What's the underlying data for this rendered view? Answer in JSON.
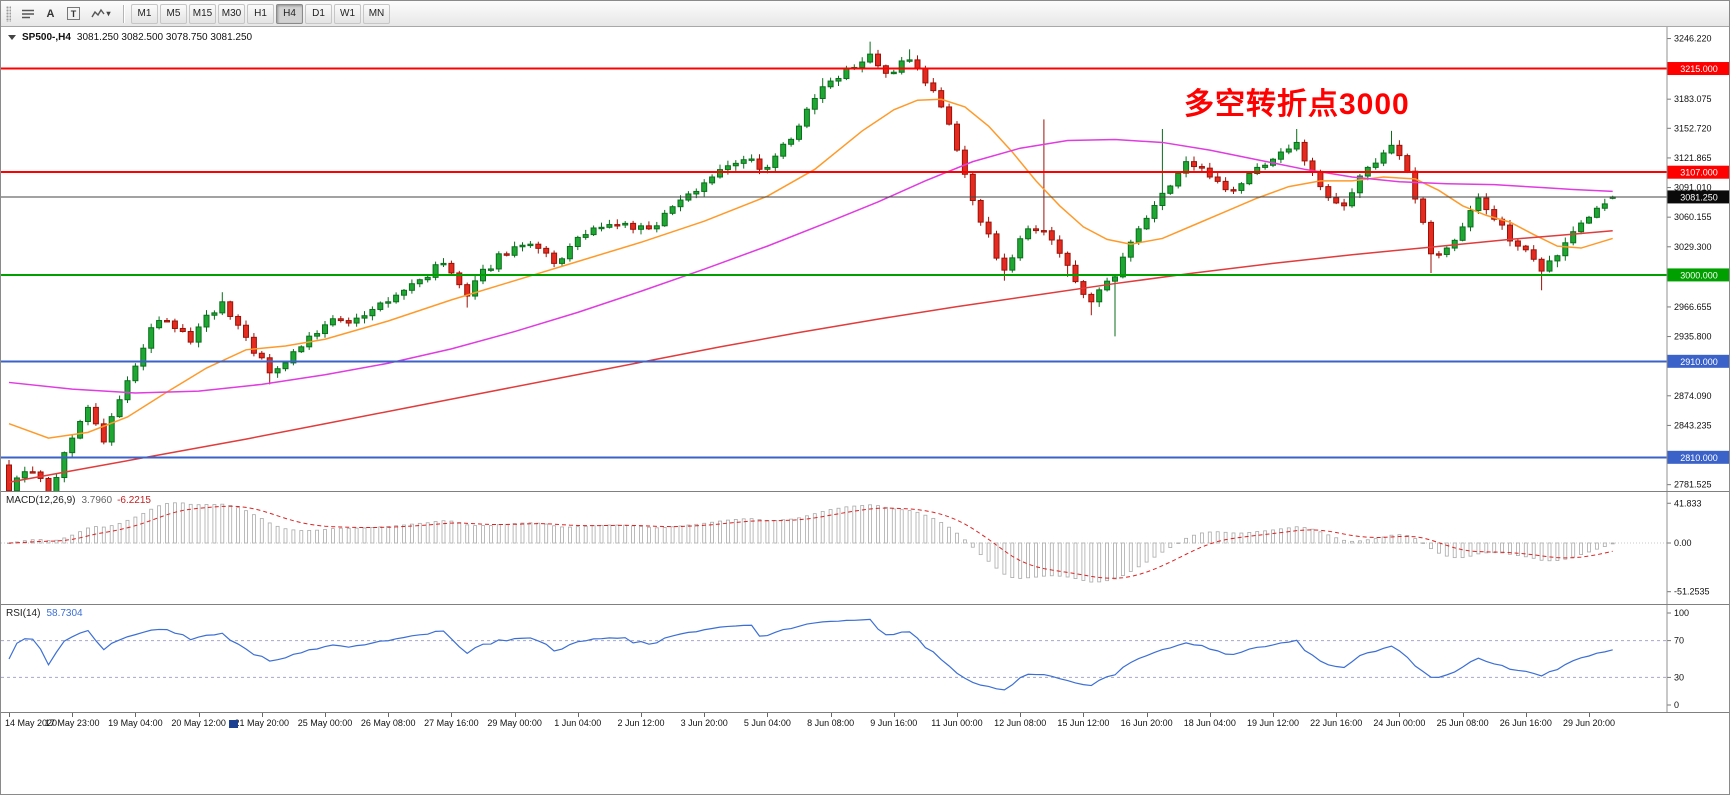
{
  "toolbar": {
    "tools": [
      "A",
      "T"
    ],
    "timeframes": [
      "M1",
      "M5",
      "M15",
      "M30",
      "H1",
      "H4",
      "D1",
      "W1",
      "MN"
    ],
    "active_timeframe": "H4"
  },
  "header": {
    "symbol": "SP500-,H4",
    "ohlc": "3081.250 3082.500 3078.750 3081.250"
  },
  "annotation": {
    "text": "多空转折点3000",
    "color": "#ff0000"
  },
  "colors": {
    "up": "#1fa733",
    "up_border": "#0a6e1c",
    "down": "#e52b20",
    "down_border": "#9c1208",
    "ma_fast": "#ff9a2a",
    "ma_medium": "#e03ce0",
    "ma_slow": "#e23b3b",
    "level_red": "#ff0000",
    "level_green": "#00a000",
    "level_blue": "#3a62c8",
    "price_line": "#444444",
    "price_badge_bg": "#0a0a0a",
    "macd_hist": "#aaaaaa",
    "macd_signal": "#dd2222",
    "rsi_line": "#3c6fd6"
  },
  "chart_data": {
    "type": "candlestick",
    "symbol": "SP500-",
    "timeframe": "H4",
    "ylim": [
      2777,
      3252
    ],
    "bars": 204,
    "bar_spacing": 7.9,
    "first_open": 2802,
    "last_bar": {
      "o": 3081.25,
      "h": 3082.5,
      "l": 3078.75,
      "c": 3081.25
    },
    "price_ticks": [
      3246.22,
      3183.075,
      3152.72,
      3121.865,
      3091.01,
      3060.155,
      3029.3,
      2966.655,
      2935.8,
      2874.09,
      2843.235,
      2781.525
    ],
    "levels": [
      {
        "price": 3215,
        "label": "3215.000",
        "color": "#ff0000"
      },
      {
        "price": 3107,
        "label": "3107.000",
        "color": "#ff0000"
      },
      {
        "price": 3000,
        "label": "3000.000",
        "color": "#00a000"
      },
      {
        "price": 2910,
        "label": "2910.000",
        "color": "#3a62c8"
      },
      {
        "price": 2810,
        "label": "2810.000",
        "color": "#3a62c8"
      }
    ],
    "current_price": {
      "value": 3081.25,
      "label": "3081.250"
    },
    "x_labels": [
      "14 May 2020",
      "17 May 23:00",
      "19 May 04:00",
      "20 May 12:00",
      "21 May 20:00",
      "25 May 00:00",
      "26 May 08:00",
      "27 May 16:00",
      "29 May 00:00",
      "1 Jun 04:00",
      "2 Jun 12:00",
      "3 Jun 20:00",
      "5 Jun 04:00",
      "8 Jun 08:00",
      "9 Jun 16:00",
      "11 Jun 00:00",
      "12 Jun 08:00",
      "15 Jun 12:00",
      "16 Jun 20:00",
      "18 Jun 04:00",
      "19 Jun 12:00",
      "22 Jun 16:00",
      "24 Jun 00:00",
      "25 Jun 08:00",
      "26 Jun 16:00",
      "29 Jun 20:00"
    ],
    "bars_per_label": 8,
    "close_anchors": [
      [
        0,
        2775
      ],
      [
        2,
        2795
      ],
      [
        4,
        2788
      ],
      [
        5,
        2772
      ],
      [
        8,
        2830
      ],
      [
        10,
        2862
      ],
      [
        12,
        2826
      ],
      [
        14,
        2870
      ],
      [
        16,
        2905
      ],
      [
        18,
        2945
      ],
      [
        20,
        2952
      ],
      [
        23,
        2930
      ],
      [
        25,
        2958
      ],
      [
        27,
        2972
      ],
      [
        30,
        2935
      ],
      [
        33,
        2898
      ],
      [
        36,
        2920
      ],
      [
        40,
        2948
      ],
      [
        44,
        2955
      ],
      [
        48,
        2972
      ],
      [
        52,
        2995
      ],
      [
        55,
        3012
      ],
      [
        58,
        2978
      ],
      [
        62,
        3022
      ],
      [
        66,
        3032
      ],
      [
        69,
        3012
      ],
      [
        73,
        3042
      ],
      [
        77,
        3052
      ],
      [
        81,
        3048
      ],
      [
        85,
        3078
      ],
      [
        89,
        3102
      ],
      [
        93,
        3120
      ],
      [
        96,
        3112
      ],
      [
        100,
        3155
      ],
      [
        103,
        3196
      ],
      [
        106,
        3215
      ],
      [
        109,
        3230
      ],
      [
        111,
        3210
      ],
      [
        114,
        3224
      ],
      [
        116,
        3200
      ],
      [
        118,
        3175
      ],
      [
        120,
        3130
      ],
      [
        123,
        3055
      ],
      [
        126,
        3005
      ],
      [
        129,
        3048
      ],
      [
        131,
        3046
      ],
      [
        134,
        3010
      ],
      [
        137,
        2972
      ],
      [
        140,
        2998
      ],
      [
        143,
        3048
      ],
      [
        146,
        3085
      ],
      [
        149,
        3118
      ],
      [
        152,
        3102
      ],
      [
        155,
        3088
      ],
      [
        158,
        3112
      ],
      [
        161,
        3128
      ],
      [
        163,
        3138
      ],
      [
        166,
        3092
      ],
      [
        169,
        3072
      ],
      [
        172,
        3112
      ],
      [
        175,
        3135
      ],
      [
        177,
        3108
      ],
      [
        180,
        3022
      ],
      [
        182,
        3028
      ],
      [
        184,
        3050
      ],
      [
        186,
        3080
      ],
      [
        188,
        3058
      ],
      [
        191,
        3030
      ],
      [
        194,
        3004
      ],
      [
        196,
        3020
      ],
      [
        198,
        3045
      ],
      [
        200,
        3060
      ],
      [
        203,
        3081.25
      ]
    ],
    "wick_lows": {
      "0": 2756,
      "5": 2764,
      "33": 2886,
      "58": 2966,
      "126": 2994,
      "134": 2998,
      "137": 2958,
      "140": 2936,
      "180": 3002,
      "194": 2984,
      "196": 3008
    },
    "wick_highs": {
      "27": 2982,
      "103": 3205,
      "109": 3243,
      "114": 3235,
      "131": 3162,
      "146": 3152,
      "163": 3152,
      "175": 3150
    },
    "ma_lines": [
      {
        "name": "ma-fast",
        "color": "#ff9a2a",
        "points": [
          [
            0,
            2845
          ],
          [
            5,
            2830
          ],
          [
            10,
            2836
          ],
          [
            15,
            2852
          ],
          [
            20,
            2878
          ],
          [
            25,
            2903
          ],
          [
            30,
            2922
          ],
          [
            35,
            2926
          ],
          [
            40,
            2933
          ],
          [
            48,
            2952
          ],
          [
            56,
            2974
          ],
          [
            64,
            2994
          ],
          [
            72,
            3014
          ],
          [
            80,
            3034
          ],
          [
            88,
            3056
          ],
          [
            96,
            3082
          ],
          [
            102,
            3110
          ],
          [
            108,
            3150
          ],
          [
            112,
            3172
          ],
          [
            115,
            3182
          ],
          [
            118,
            3183
          ],
          [
            121,
            3175
          ],
          [
            124,
            3155
          ],
          [
            127,
            3128
          ],
          [
            130,
            3098
          ],
          [
            133,
            3072
          ],
          [
            136,
            3050
          ],
          [
            139,
            3037
          ],
          [
            142,
            3032
          ],
          [
            146,
            3038
          ],
          [
            150,
            3052
          ],
          [
            154,
            3066
          ],
          [
            158,
            3080
          ],
          [
            162,
            3092
          ],
          [
            166,
            3098
          ],
          [
            170,
            3098
          ],
          [
            174,
            3102
          ],
          [
            178,
            3100
          ],
          [
            181,
            3088
          ],
          [
            184,
            3072
          ],
          [
            187,
            3062
          ],
          [
            190,
            3055
          ],
          [
            193,
            3042
          ],
          [
            196,
            3030
          ],
          [
            199,
            3028
          ],
          [
            203,
            3038
          ]
        ]
      },
      {
        "name": "ma-medium",
        "color": "#e03ce0",
        "points": [
          [
            0,
            2888
          ],
          [
            8,
            2881
          ],
          [
            16,
            2877
          ],
          [
            24,
            2879
          ],
          [
            32,
            2886
          ],
          [
            40,
            2896
          ],
          [
            48,
            2908
          ],
          [
            56,
            2923
          ],
          [
            64,
            2941
          ],
          [
            72,
            2961
          ],
          [
            80,
            2983
          ],
          [
            88,
            3006
          ],
          [
            96,
            3030
          ],
          [
            104,
            3056
          ],
          [
            110,
            3076
          ],
          [
            116,
            3098
          ],
          [
            122,
            3118
          ],
          [
            128,
            3132
          ],
          [
            134,
            3140
          ],
          [
            140,
            3141
          ],
          [
            146,
            3138
          ],
          [
            152,
            3130
          ],
          [
            158,
            3120
          ],
          [
            164,
            3110
          ],
          [
            170,
            3102
          ],
          [
            176,
            3097
          ],
          [
            182,
            3095
          ],
          [
            188,
            3094
          ],
          [
            194,
            3091
          ],
          [
            198,
            3089
          ],
          [
            203,
            3087
          ]
        ]
      },
      {
        "name": "ma-slow",
        "color": "#e23b3b",
        "points": [
          [
            0,
            2784
          ],
          [
            10,
            2799
          ],
          [
            20,
            2814
          ],
          [
            30,
            2829
          ],
          [
            40,
            2845
          ],
          [
            50,
            2861
          ],
          [
            60,
            2877
          ],
          [
            70,
            2893
          ],
          [
            80,
            2909
          ],
          [
            90,
            2925
          ],
          [
            100,
            2940
          ],
          [
            110,
            2954
          ],
          [
            120,
            2967
          ],
          [
            130,
            2979
          ],
          [
            140,
            2991
          ],
          [
            150,
            3002
          ],
          [
            160,
            3012
          ],
          [
            170,
            3021
          ],
          [
            180,
            3029
          ],
          [
            190,
            3037
          ],
          [
            196,
            3041
          ],
          [
            203,
            3046
          ]
        ]
      }
    ],
    "macd": {
      "label": "MACD(12,26,9)",
      "value_main": "3.7960",
      "value_signal": "-6.2215",
      "params": [
        12,
        26,
        9
      ],
      "axis_ticks": [
        41.833,
        0.0,
        -51.2535
      ],
      "axis_labels": [
        "41.833",
        "0.00",
        "-51.2535"
      ]
    },
    "rsi": {
      "label": "RSI(14)",
      "value": "58.7304",
      "period": 14,
      "levels": [
        70,
        30
      ],
      "axis_ticks": [
        100,
        70,
        30,
        0
      ],
      "axis_labels": [
        "100",
        "70",
        "30",
        "0"
      ]
    }
  }
}
